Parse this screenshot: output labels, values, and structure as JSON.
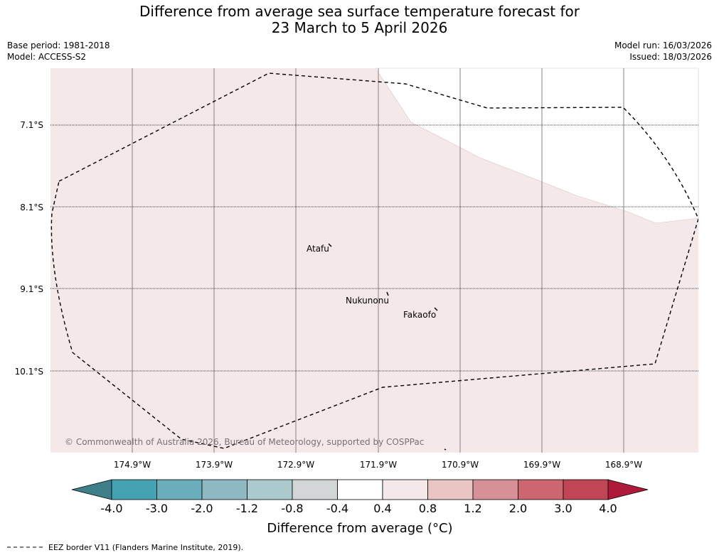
{
  "title": {
    "line1": "Difference from average sea surface temperature forecast for",
    "line2": "23 March to 5 April 2026"
  },
  "meta": {
    "base_period": "Base period: 1981-2018",
    "model": "Model: ACCESS-S2",
    "model_run": "Model run: 16/03/2026",
    "issued": "Issued: 18/03/2026"
  },
  "map": {
    "latitude_labels": [
      "7.1°S",
      "8.1°S",
      "9.1°S",
      "10.1°S"
    ],
    "longitude_labels": [
      "174.9°W",
      "173.9°W",
      "172.9°W",
      "171.9°W",
      "170.9°W",
      "169.9°W",
      "168.9°W"
    ],
    "places": [
      "Atafu",
      "Nukunonu",
      "Fakaofo"
    ],
    "copyright": "© Commonwealth of Australia 2026, Bureau of Meteorology, supported by COSPPac",
    "field_category": "0.4 to 0.8"
  },
  "colorbar": {
    "tick_labels": [
      "-4.0",
      "-3.0",
      "-2.0",
      "-1.2",
      "-0.8",
      "-0.4",
      "0.4",
      "0.8",
      "1.2",
      "2.0",
      "3.0",
      "4.0"
    ],
    "colors": [
      "#3f7f8a",
      "#45a2b3",
      "#6aaebb",
      "#8fb9c2",
      "#abcacd",
      "#d2d6d6",
      "#ffffff",
      "#f5e8e8",
      "#e9c6c3",
      "#d79096",
      "#cd6670",
      "#c04555",
      "#ae1a3a"
    ],
    "label": "Difference from average (°C)"
  },
  "legend": {
    "eez": "EEZ border V11 (Flanders Marine Institute, 2019)."
  }
}
